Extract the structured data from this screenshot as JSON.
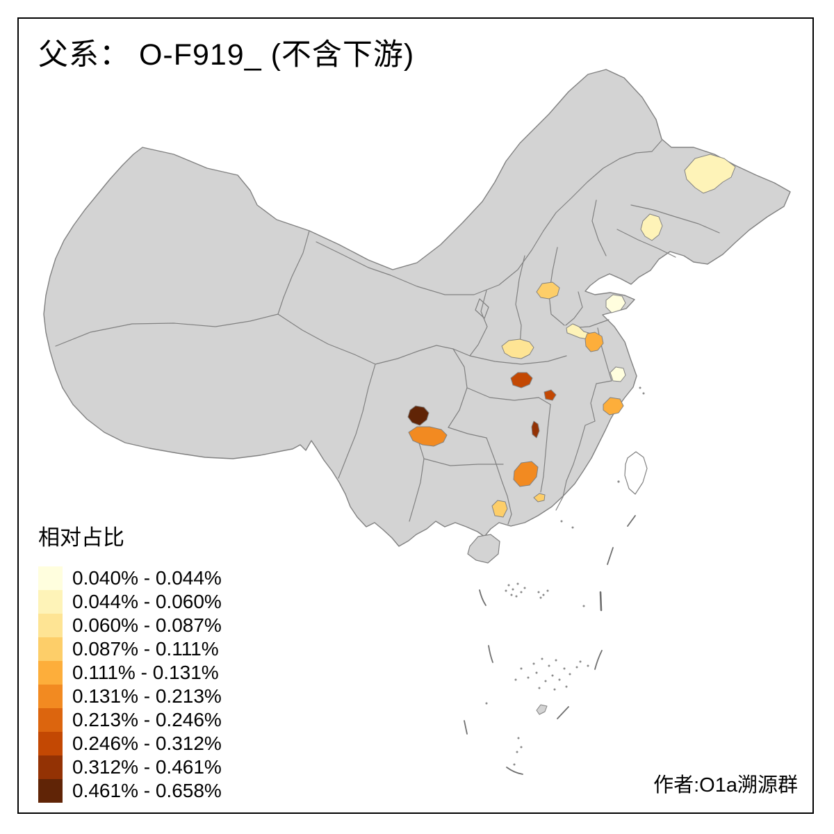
{
  "title": "父系： O-F919_ (不含下游)",
  "attribution": "作者:O1a溯源群",
  "legend": {
    "title": "相对占比",
    "classes": [
      {
        "label": "0.040% - 0.044%",
        "color": "#FFFEDE"
      },
      {
        "label": "0.044% - 0.060%",
        "color": "#FEF3B8"
      },
      {
        "label": "0.060% - 0.087%",
        "color": "#FEE494"
      },
      {
        "label": "0.087% - 0.111%",
        "color": "#FDCE69"
      },
      {
        "label": "0.111% - 0.131%",
        "color": "#FDAE3B"
      },
      {
        "label": "0.131% - 0.213%",
        "color": "#F28A21"
      },
      {
        "label": "0.213% - 0.246%",
        "color": "#DC650E"
      },
      {
        "label": "0.246% - 0.312%",
        "color": "#C34803"
      },
      {
        "label": "0.312% - 0.461%",
        "color": "#933204"
      },
      {
        "label": "0.461% - 0.658%",
        "color": "#602406"
      }
    ]
  },
  "map": {
    "base_fill": "#D3D3D3",
    "border_color": "#808080",
    "background": "#FFFFFF",
    "frame_color": "#000000",
    "highlighted_regions": [
      {
        "id": "region-1",
        "area": "northeast-heilongjiang",
        "value_range": "0.044% - 0.060%",
        "color": "#FEF3B8"
      },
      {
        "id": "region-2",
        "area": "northeast-jilin",
        "value_range": "0.044% - 0.060%",
        "color": "#FEF3B8"
      },
      {
        "id": "region-3",
        "area": "north-shanxi-hebei",
        "value_range": "0.087% - 0.111%",
        "color": "#FDCE69"
      },
      {
        "id": "region-4",
        "area": "shandong-peninsula",
        "value_range": "0.040% - 0.044%",
        "color": "#FFFEDE"
      },
      {
        "id": "region-5",
        "area": "central-henan",
        "value_range": "0.044% - 0.060%",
        "color": "#FEF3B8"
      },
      {
        "id": "region-6",
        "area": "east-central-plain",
        "value_range": "0.111% - 0.131%",
        "color": "#FDAE3B"
      },
      {
        "id": "region-7",
        "area": "central-hubei-northwest",
        "value_range": "0.060% - 0.087%",
        "color": "#FEE494"
      },
      {
        "id": "region-8",
        "area": "central-hubei-south",
        "value_range": "0.246% - 0.312%",
        "color": "#C34803"
      },
      {
        "id": "region-9",
        "area": "central-small",
        "value_range": "0.246% - 0.312%",
        "color": "#C34803"
      },
      {
        "id": "region-10",
        "area": "hunan-narrow",
        "value_range": "0.312% - 0.461%",
        "color": "#933204"
      },
      {
        "id": "region-11",
        "area": "sichuan-west-dark",
        "value_range": "0.461% - 0.658%",
        "color": "#602406"
      },
      {
        "id": "region-12",
        "area": "sichuan-south-orange",
        "value_range": "0.131% - 0.213%",
        "color": "#F28A21"
      },
      {
        "id": "region-13",
        "area": "zhejiang-central",
        "value_range": "0.111% - 0.131%",
        "color": "#FDAE3B"
      },
      {
        "id": "region-14",
        "area": "south-jiangsu",
        "value_range": "0.040% - 0.044%",
        "color": "#FFFEDE"
      },
      {
        "id": "region-15",
        "area": "guangxi-northeast",
        "value_range": "0.131% - 0.213%",
        "color": "#F28A21"
      },
      {
        "id": "region-16",
        "area": "guangxi-southeast",
        "value_range": "0.087% - 0.111%",
        "color": "#FDCE69"
      },
      {
        "id": "region-17",
        "area": "guangdong-coastal",
        "value_range": "0.087% - 0.111%",
        "color": "#FDCE69"
      }
    ]
  },
  "chart_data": {
    "type": "choropleth",
    "title": "父系： O-F919_ (不含下游)",
    "legend_title": "相对占比",
    "legend_position": "bottom-left",
    "class_breaks_percent": [
      0.04,
      0.044,
      0.06,
      0.087,
      0.111,
      0.131,
      0.213,
      0.246,
      0.312,
      0.461,
      0.658
    ],
    "palette": [
      "#FFFEDE",
      "#FEF3B8",
      "#FEE494",
      "#FDCE69",
      "#FDAE3B",
      "#F28A21",
      "#DC650E",
      "#C34803",
      "#933204",
      "#602406"
    ],
    "regions": [
      {
        "id": "region-1",
        "value_range": "0.044% - 0.060%"
      },
      {
        "id": "region-2",
        "value_range": "0.044% - 0.060%"
      },
      {
        "id": "region-3",
        "value_range": "0.087% - 0.111%"
      },
      {
        "id": "region-4",
        "value_range": "0.040% - 0.044%"
      },
      {
        "id": "region-5",
        "value_range": "0.044% - 0.060%"
      },
      {
        "id": "region-6",
        "value_range": "0.111% - 0.131%"
      },
      {
        "id": "region-7",
        "value_range": "0.060% - 0.087%"
      },
      {
        "id": "region-8",
        "value_range": "0.246% - 0.312%"
      },
      {
        "id": "region-9",
        "value_range": "0.246% - 0.312%"
      },
      {
        "id": "region-10",
        "value_range": "0.312% - 0.461%"
      },
      {
        "id": "region-11",
        "value_range": "0.461% - 0.658%"
      },
      {
        "id": "region-12",
        "value_range": "0.131% - 0.213%"
      },
      {
        "id": "region-13",
        "value_range": "0.111% - 0.131%"
      },
      {
        "id": "region-14",
        "value_range": "0.040% - 0.044%"
      },
      {
        "id": "region-15",
        "value_range": "0.131% - 0.213%"
      },
      {
        "id": "region-16",
        "value_range": "0.087% - 0.111%"
      },
      {
        "id": "region-17",
        "value_range": "0.087% - 0.111%"
      }
    ]
  }
}
